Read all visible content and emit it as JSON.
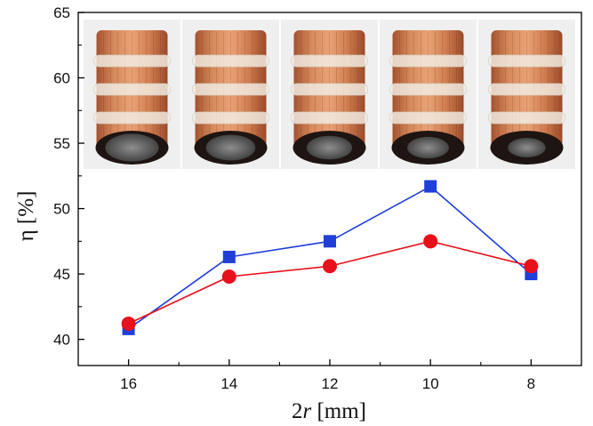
{
  "chart_data": {
    "type": "line",
    "xlabel": {
      "prefix": "2",
      "italic": "r",
      "suffix": " [mm]"
    },
    "ylabel": "η [%]",
    "x": [
      16,
      14,
      12,
      10,
      8
    ],
    "x_reversed": true,
    "xlim": [
      17,
      7
    ],
    "ylim": [
      38,
      65
    ],
    "x_ticks": [
      16,
      14,
      12,
      10,
      8
    ],
    "x_minor_ticks": [
      15,
      13,
      11,
      9
    ],
    "y_ticks": [
      40,
      45,
      50,
      55,
      60,
      65
    ],
    "grid": false,
    "series": [
      {
        "marker": "square",
        "color": "#1f3fd8",
        "values": [
          40.8,
          46.3,
          47.5,
          51.7,
          45.0
        ]
      },
      {
        "marker": "circle",
        "color": "#e8101a",
        "values": [
          41.2,
          44.8,
          45.6,
          47.5,
          45.6
        ]
      }
    ],
    "inset_images": [
      {
        "label": "coil-photo-16mm"
      },
      {
        "label": "coil-photo-14mm"
      },
      {
        "label": "coil-photo-12mm"
      },
      {
        "label": "coil-photo-10mm"
      },
      {
        "label": "coil-photo-8mm"
      }
    ]
  }
}
